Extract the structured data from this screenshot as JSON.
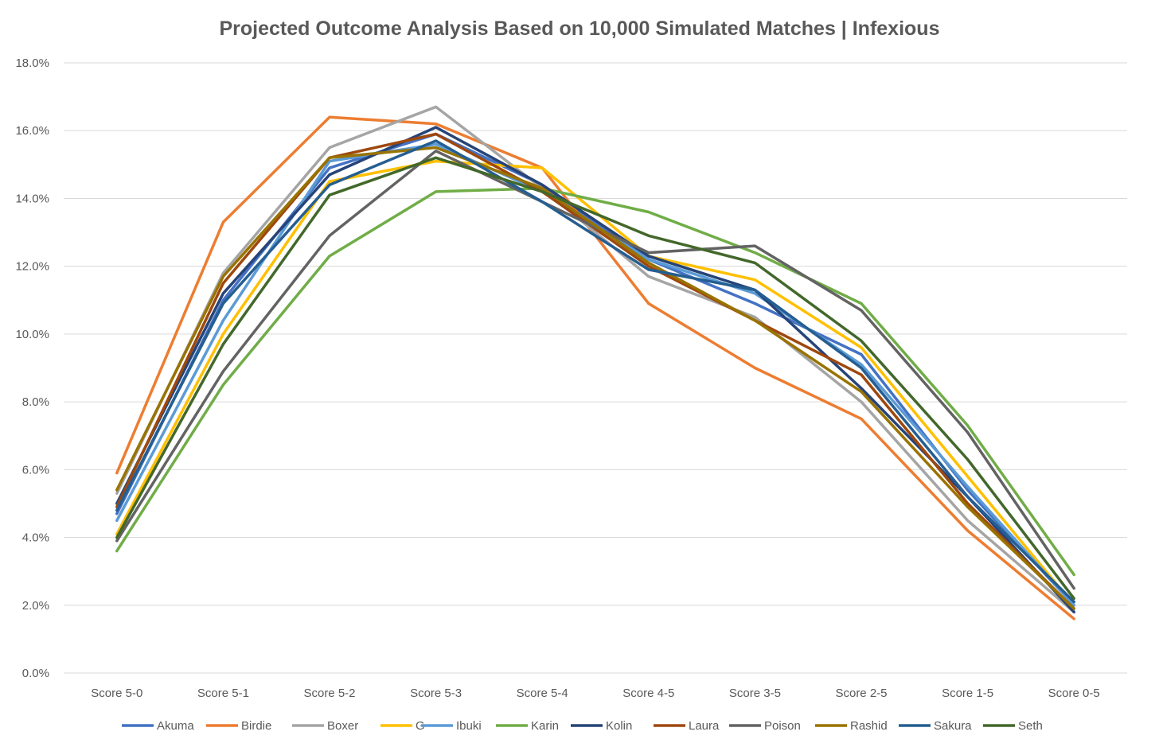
{
  "chart_data": {
    "type": "line",
    "title": "Projected Outcome Analysis Based on 10,000 Simulated Matches | Infexious",
    "xlabel": "",
    "ylabel": "",
    "ylim": [
      0,
      18
    ],
    "y_ticks": [
      0,
      2,
      4,
      6,
      8,
      10,
      12,
      14,
      16,
      18
    ],
    "y_tick_labels": [
      "0.0%",
      "2.0%",
      "4.0%",
      "6.0%",
      "8.0%",
      "10.0%",
      "12.0%",
      "14.0%",
      "16.0%",
      "18.0%"
    ],
    "grid": "horizontal",
    "legend_position": "bottom",
    "categories": [
      "Score 5-0",
      "Score 5-1",
      "Score 5-2",
      "Score 5-3",
      "Score 5-4",
      "Score 4-5",
      "Score 3-5",
      "Score 2-5",
      "Score 1-5",
      "Score 0-5"
    ],
    "series": [
      {
        "name": "Akuma",
        "color": "#4472C4",
        "values": [
          4.7,
          11.0,
          14.9,
          15.9,
          14.4,
          12.2,
          10.9,
          9.4,
          5.4,
          2.0
        ]
      },
      {
        "name": "Birdie",
        "color": "#ED7D31",
        "values": [
          5.9,
          13.3,
          16.4,
          16.2,
          14.9,
          10.9,
          9.0,
          7.5,
          4.2,
          1.6
        ]
      },
      {
        "name": "Boxer",
        "color": "#A5A5A5",
        "values": [
          5.3,
          11.8,
          15.5,
          16.7,
          14.3,
          11.7,
          10.5,
          8.0,
          4.5,
          1.8
        ]
      },
      {
        "name": "G",
        "color": "#FFC000",
        "values": [
          4.1,
          10.0,
          14.5,
          15.1,
          14.9,
          12.3,
          11.6,
          9.6,
          5.8,
          2.0
        ]
      },
      {
        "name": "Ibuki",
        "color": "#5B9BD5",
        "values": [
          4.5,
          10.4,
          15.1,
          15.6,
          14.2,
          12.2,
          11.2,
          9.1,
          5.5,
          2.0
        ]
      },
      {
        "name": "Karin",
        "color": "#70AD47",
        "values": [
          3.6,
          8.5,
          12.3,
          14.2,
          14.3,
          13.6,
          12.4,
          10.9,
          7.3,
          2.9
        ]
      },
      {
        "name": "Kolin",
        "color": "#264478",
        "values": [
          5.0,
          11.2,
          14.7,
          16.1,
          14.4,
          12.3,
          11.3,
          8.4,
          5.2,
          1.8
        ]
      },
      {
        "name": "Laura",
        "color": "#9E480E",
        "values": [
          4.9,
          11.5,
          15.2,
          15.9,
          14.2,
          12.0,
          10.4,
          8.8,
          5.0,
          1.9
        ]
      },
      {
        "name": "Poison",
        "color": "#636363",
        "values": [
          3.9,
          8.9,
          12.9,
          15.4,
          13.9,
          12.4,
          12.6,
          10.7,
          7.1,
          2.5
        ]
      },
      {
        "name": "Rashid",
        "color": "#997300",
        "values": [
          5.4,
          11.7,
          15.2,
          15.5,
          14.3,
          12.1,
          10.4,
          8.3,
          4.9,
          1.9
        ]
      },
      {
        "name": "Sakura",
        "color": "#255E91",
        "values": [
          4.8,
          10.9,
          14.4,
          15.7,
          13.9,
          11.9,
          11.3,
          9.0,
          5.2,
          2.1
        ]
      },
      {
        "name": "Seth",
        "color": "#43682B",
        "values": [
          4.0,
          9.7,
          14.1,
          15.2,
          14.2,
          12.9,
          12.1,
          9.8,
          6.3,
          2.2
        ]
      }
    ]
  }
}
